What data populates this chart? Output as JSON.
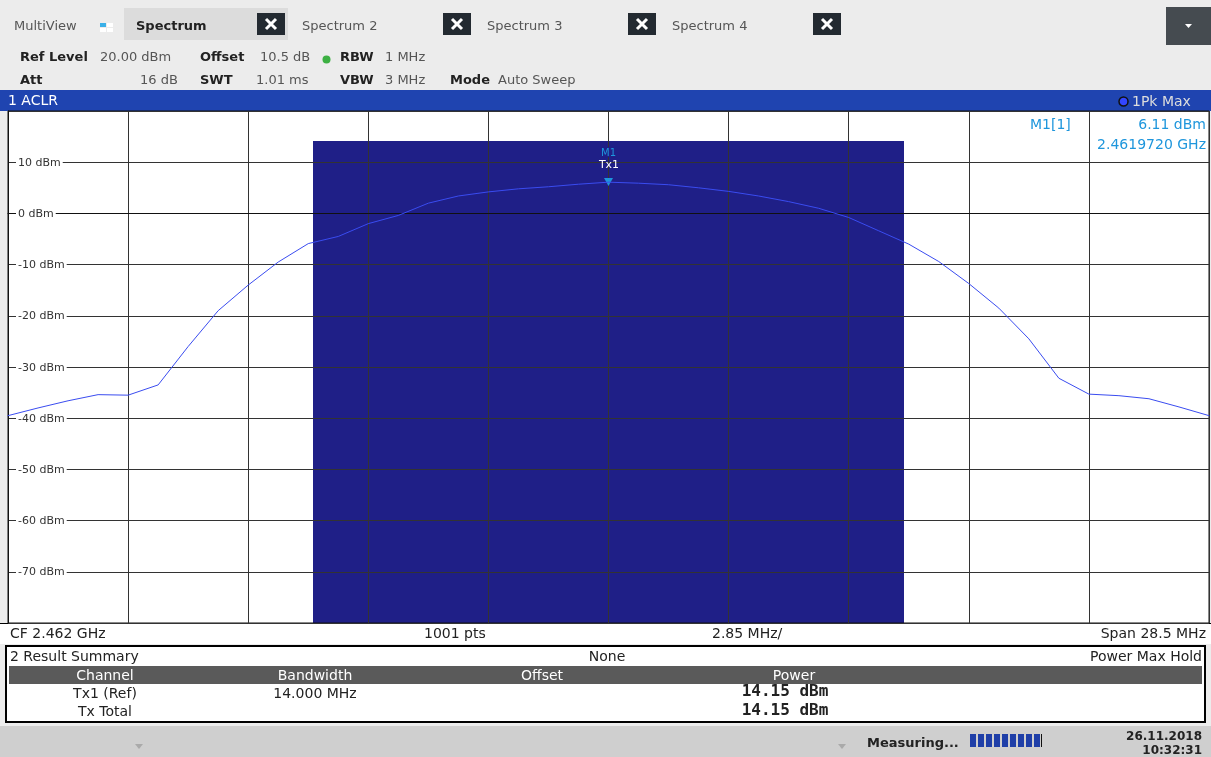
{
  "chart_data": {
    "type": "line",
    "title": "1 ACLR",
    "categories": [
      null,
      null,
      null,
      null,
      null,
      null,
      null,
      null,
      null,
      null,
      null,
      null,
      null,
      null,
      null,
      null,
      null,
      null,
      null,
      null,
      null,
      null,
      null,
      null,
      null,
      null,
      null,
      null,
      null,
      null,
      null,
      null,
      null,
      null,
      null,
      null,
      null,
      null,
      null,
      null,
      null
    ],
    "series": [
      {
        "color": "#3a4cf0",
        "values": [
          -39.5,
          -38.0,
          -36.6,
          -35.4,
          -35.5,
          -33.5,
          -26.0,
          -19.0,
          -14.0,
          -9.5,
          -5.9,
          -4.5,
          -2.0,
          -0.4,
          2.0,
          3.4,
          4.2,
          4.8,
          5.2,
          5.7,
          6.1,
          5.9,
          5.6,
          5.0,
          4.3,
          3.4,
          2.3,
          1.0,
          -0.8,
          -3.4,
          -6.0,
          -9.4,
          -13.7,
          -18.5,
          -24.5,
          -32.2,
          -35.3,
          -35.6,
          -36.2,
          -37.8,
          -39.5
        ]
      }
    ],
    "ylim": [
      -80,
      20
    ],
    "yticks": [
      {
        "value": -80,
        "label": null
      },
      {
        "value": -70,
        "label": "-70 dBm"
      },
      {
        "value": -60,
        "label": "-60 dBm"
      },
      {
        "value": -50,
        "label": "-50 dBm"
      },
      {
        "value": -40,
        "label": "-40 dBm"
      },
      {
        "value": -30,
        "label": "-30 dBm"
      },
      {
        "value": -20,
        "label": "-20 dBm"
      },
      {
        "value": -10,
        "label": "-10 dBm"
      },
      {
        "value": 0,
        "label": "0 dBm"
      },
      {
        "value": 10,
        "label": "10 dBm"
      },
      {
        "value": 20,
        "label": null
      }
    ],
    "tick_labels": "y",
    "grid": true,
    "marker": "none",
    "line_style": "solid",
    "annotations": [
      "MultiView",
      "Spectrum",
      "Spectrum 2",
      "Spectrum 3",
      "Spectrum 4",
      "Ref Level",
      "20.00 dBm",
      "Offset",
      "10.5 dB",
      "RBW",
      "1 MHz",
      "Att",
      "16 dB",
      "SWT",
      "1.01 ms",
      "VBW",
      "3 MHz",
      "Mode",
      "Auto Sweep",
      "1Pk Max",
      {
        "text": "M1",
        "y": 6.11
      },
      "Tx1",
      "M1[1]",
      "6.11 dBm",
      "2.4619720 GHz",
      "CF 2.462 GHz",
      "1001 pts",
      "2.85 MHz/",
      "Span 28.5 MHz",
      "2 Result Summary",
      "None",
      "Power Max Hold",
      "Channel",
      "Bandwidth",
      "Offset",
      "Power",
      "Tx1 (Ref)",
      "14.000 MHz",
      "14.15 dBm",
      "Tx Total",
      "14.15 dBm",
      "Measuring...",
      "26.11.2018",
      "10:32:31"
    ]
  }
}
